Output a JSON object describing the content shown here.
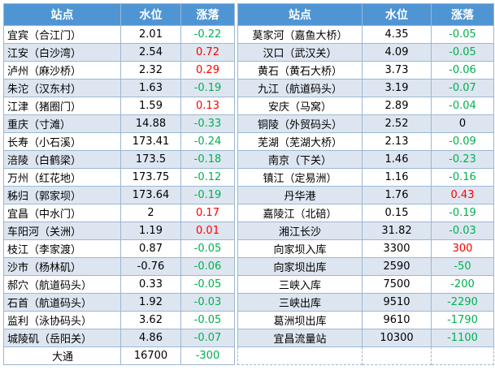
{
  "left": {
    "header": [
      "站点",
      "水位",
      "涨落"
    ],
    "rows": [
      [
        "宜宾（合江门）",
        "2.01",
        "-0.22"
      ],
      [
        "江安（白沙湾）",
        "2.54",
        "0.72"
      ],
      [
        "泸州（麻沙桥）",
        "2.32",
        "0.29"
      ],
      [
        "朱沱（汉东村）",
        "1.63",
        "-0.19"
      ],
      [
        "江津（猪圈门）",
        "1.59",
        "0.13"
      ],
      [
        "重庆（寸滩）",
        "14.88",
        "-0.33"
      ],
      [
        "长寿（小石溪）",
        "173.41",
        "-0.24"
      ],
      [
        "涪陵（白鹤梁）",
        "173.5",
        "-0.18"
      ],
      [
        "万州（红花地）",
        "173.75",
        "-0.12"
      ],
      [
        "秭归（郭家坝）",
        "173.64",
        "-0.19"
      ],
      [
        "宜昌（中水门）",
        "2",
        "0.17"
      ],
      [
        "车阳河（关洲）",
        "1.19",
        "0.01"
      ],
      [
        "枝江（李家渡）",
        "0.87",
        "-0.05"
      ],
      [
        "沙市（杨林矶）",
        "-0.76",
        "-0.06"
      ],
      [
        "郝穴（航道码头）",
        "0.33",
        "-0.05"
      ],
      [
        "石首（航道码头）",
        "1.92",
        "-0.03"
      ],
      [
        "监利（泳协码头）",
        "3.62",
        "-0.05"
      ],
      [
        "城陵矶（岳阳关）",
        "4.86",
        "-0.07"
      ],
      [
        "大通",
        "16700",
        "-300"
      ]
    ]
  },
  "right": {
    "header": [
      "站点",
      "水位",
      "涨落"
    ],
    "rows": [
      [
        "莫家河（嘉鱼大桥）",
        "4.35",
        "-0.05"
      ],
      [
        "汉口（武汉关）",
        "4.09",
        "-0.05"
      ],
      [
        "黄石（黄石大桥）",
        "3.73",
        "-0.06"
      ],
      [
        "九江（航道码头）",
        "3.19",
        "-0.07"
      ],
      [
        "安庆（马窝）",
        "2.89",
        "-0.04"
      ],
      [
        "铜陵（外贸码头）",
        "2.52",
        "0"
      ],
      [
        "芜湖（芜湖大桥）",
        "2.13",
        "-0.09"
      ],
      [
        "南京（下关）",
        "1.46",
        "-0.23"
      ],
      [
        "镇江（定易洲）",
        "1.16",
        "-0.16"
      ],
      [
        "丹华港",
        "1.76",
        "0.43"
      ],
      [
        "嘉陵江（北碚）",
        "0.15",
        "-0.19"
      ],
      [
        "湘江长沙",
        "31.82",
        "-0.03"
      ],
      [
        "向家坝入库",
        "3300",
        "300"
      ],
      [
        "向家坝出库",
        "2590",
        "-50"
      ],
      [
        "三峡入库",
        "7500",
        "-200"
      ],
      [
        "三峡出库",
        "9510",
        "-2290"
      ],
      [
        "葛洲坝出库",
        "9610",
        "-1790"
      ],
      [
        "宜昌流量站",
        "10300",
        "-1100"
      ]
    ]
  }
}
